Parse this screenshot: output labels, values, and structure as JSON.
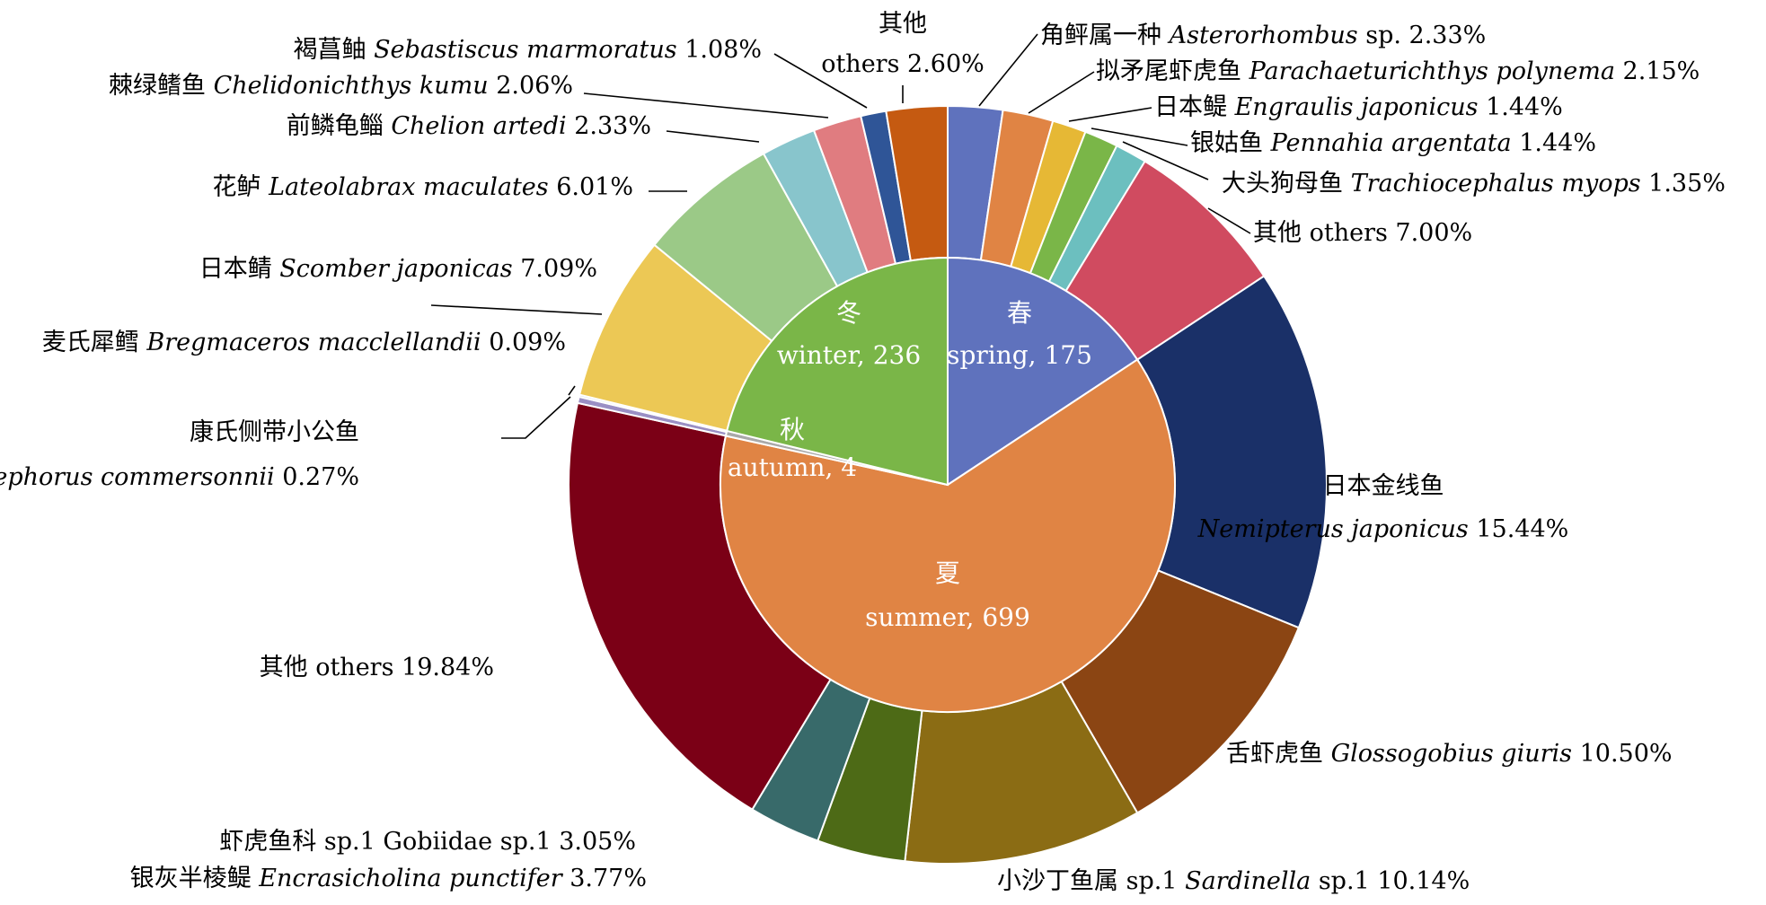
{
  "chart_data": {
    "type": "pie",
    "subtype": "nested-donut",
    "inner_ring": {
      "slices": [
        {
          "cn": "春",
          "name": "spring",
          "value": 175,
          "color": "#5f72bd"
        },
        {
          "cn": "夏",
          "name": "summer",
          "value": 699,
          "color": "#e08444"
        },
        {
          "cn": "秋",
          "name": "autumn",
          "value": 4,
          "color": "#a9a9a9"
        },
        {
          "cn": "冬",
          "name": "winter",
          "value": 236,
          "color": "#7ab648"
        }
      ]
    },
    "outer_ring": {
      "slices": [
        {
          "season": "spring",
          "cn": "角鲆属一种",
          "latin": "Asterorhombus",
          "suffix": "sp.",
          "pct": 2.33,
          "color": "#5f72bd"
        },
        {
          "season": "spring",
          "cn": "拟矛尾虾虎鱼",
          "latin": "Parachaeturichthys polynema",
          "suffix": "",
          "pct": 2.15,
          "color": "#e08444"
        },
        {
          "season": "spring",
          "cn": "日本鳀",
          "latin": "Engraulis japonicus",
          "suffix": "",
          "pct": 1.44,
          "color": "#e6b835"
        },
        {
          "season": "spring",
          "cn": "银姑鱼",
          "latin": "Pennahia argentata",
          "suffix": "",
          "pct": 1.44,
          "color": "#7ab648"
        },
        {
          "season": "spring",
          "cn": "大头狗母鱼",
          "latin": "Trachiocephalus myops",
          "suffix": "",
          "pct": 1.35,
          "color": "#6cbfbf"
        },
        {
          "season": "spring",
          "cn": "其他",
          "latin": "",
          "suffix": "others",
          "pct": 7.0,
          "color": "#d04b60"
        },
        {
          "season": "summer",
          "cn": "日本金线鱼",
          "latin": "Nemipterus japonicus",
          "suffix": "",
          "pct": 15.44,
          "color": "#1a3068"
        },
        {
          "season": "summer",
          "cn": "舌虾虎鱼",
          "latin": "Glossogobius giuris",
          "suffix": "",
          "pct": 10.5,
          "color": "#8b4513"
        },
        {
          "season": "summer",
          "cn": "小沙丁鱼属 sp.1",
          "latin": "Sardinella",
          "suffix": "sp.1",
          "pct": 10.14,
          "color": "#8b6c14"
        },
        {
          "season": "summer",
          "cn": "银灰半棱鳀",
          "latin": "Encrasicholina punctifer",
          "suffix": "",
          "pct": 3.77,
          "color": "#4d6a16"
        },
        {
          "season": "summer",
          "cn": "虾虎鱼科 sp.1",
          "latin": "",
          "suffix": "Gobiidae sp.1",
          "pct": 3.05,
          "color": "#386a6a"
        },
        {
          "season": "summer",
          "cn": "其他",
          "latin": "",
          "suffix": "others",
          "pct": 19.84,
          "color": "#7b0016"
        },
        {
          "season": "autumn",
          "cn": "康氏侧带小公鱼",
          "latin": "Stolephorus commersonnii",
          "suffix": "",
          "pct": 0.27,
          "color": "#9a8fc4"
        },
        {
          "season": "autumn",
          "cn": "麦氏犀鳕",
          "latin": "Bregmaceros macclellandii",
          "suffix": "",
          "pct": 0.09,
          "color": "#b8cce4"
        },
        {
          "season": "winter",
          "cn": "日本鲭",
          "latin": "Scomber japonicas",
          "suffix": "",
          "pct": 7.09,
          "color": "#ecc855"
        },
        {
          "season": "winter",
          "cn": "花鲈",
          "latin": "Lateolabrax maculates",
          "suffix": "",
          "pct": 6.01,
          "color": "#9bc987"
        },
        {
          "season": "winter",
          "cn": "前鳞龟鲻",
          "latin": "Chelion artedi",
          "suffix": "",
          "pct": 2.33,
          "color": "#88c5cc"
        },
        {
          "season": "winter",
          "cn": "棘绿鳍鱼",
          "latin": "Chelidonichthys kumu",
          "suffix": "",
          "pct": 2.06,
          "color": "#e07c80"
        },
        {
          "season": "winter",
          "cn": "褐菖鲉",
          "latin": "Sebastiscus marmoratus",
          "suffix": "",
          "pct": 1.08,
          "color": "#2f5597"
        },
        {
          "season": "winter",
          "cn": "其他",
          "latin": "",
          "suffix": "others",
          "pct": 2.6,
          "color": "#c55a11"
        }
      ]
    }
  }
}
